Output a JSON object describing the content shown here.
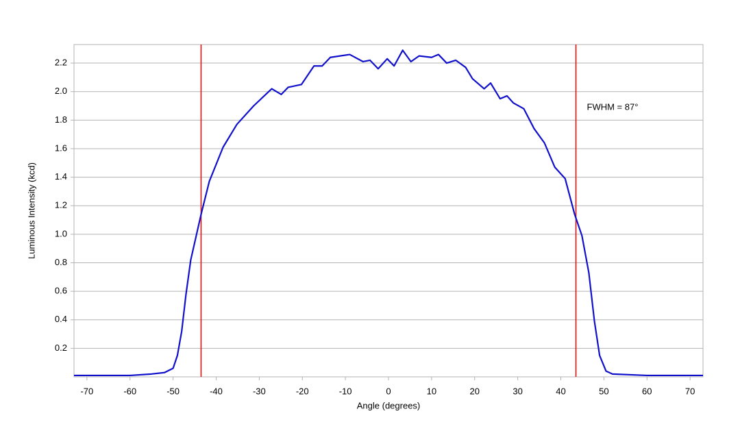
{
  "chart_data": {
    "type": "line",
    "x_label": "Angle (degrees)",
    "y_label": "Luminous Intensity (kcd)",
    "annotation": "FWHM = 87°",
    "x": [
      -73,
      -72,
      -66,
      -60,
      -55,
      -52,
      -50,
      -49,
      -48,
      -47,
      -45.9,
      -43.5,
      -41.6,
      -38.4,
      -35.2,
      -31.3,
      -27.1,
      -24.9,
      -23.3,
      -20.2,
      -17.3,
      -15.4,
      -13.5,
      -9,
      -5.9,
      -4.3,
      -2.4,
      -0.3,
      1.3,
      3.3,
      5.2,
      7.1,
      10,
      11.6,
      13.5,
      15.6,
      17.9,
      19.5,
      22.2,
      23.7,
      25.9,
      27.5,
      29,
      31.4,
      33.8,
      36.2,
      38.6,
      41,
      43.2,
      44.9,
      46.5,
      47.8,
      49,
      50.5,
      52,
      60,
      68,
      72,
      73
    ],
    "values": [
      0.01,
      0.01,
      0.01,
      0.01,
      0.02,
      0.03,
      0.06,
      0.15,
      0.32,
      0.58,
      0.82,
      1.14,
      1.37,
      1.61,
      1.77,
      1.9,
      2.02,
      1.98,
      2.03,
      2.05,
      2.18,
      2.18,
      2.24,
      2.26,
      2.21,
      2.22,
      2.16,
      2.23,
      2.18,
      2.29,
      2.21,
      2.25,
      2.24,
      2.26,
      2.2,
      2.22,
      2.17,
      2.09,
      2.02,
      2.06,
      1.95,
      1.97,
      1.92,
      1.88,
      1.74,
      1.64,
      1.47,
      1.39,
      1.14,
      0.99,
      0.73,
      0.39,
      0.15,
      0.04,
      0.02,
      0.01,
      0.01,
      0.01,
      0.01
    ],
    "color": "#1010cc",
    "vlines": {
      "values": [
        -43.5,
        43.5
      ],
      "color": "#dd1111"
    },
    "xlim": [
      -73,
      73
    ],
    "xticks": [
      -70,
      -60,
      -50,
      -40,
      -30,
      -20,
      -10,
      0,
      10,
      20,
      30,
      40,
      50,
      60,
      70
    ],
    "ylim": [
      0,
      2.33
    ],
    "yticks": [
      0.2,
      0.4,
      0.6,
      0.8,
      {
        "value": 1,
        "label": "1.0"
      },
      1.2,
      1.4,
      1.6,
      1.8,
      {
        "value": 2,
        "label": "2.0"
      },
      2.2
    ],
    "grid": true
  }
}
